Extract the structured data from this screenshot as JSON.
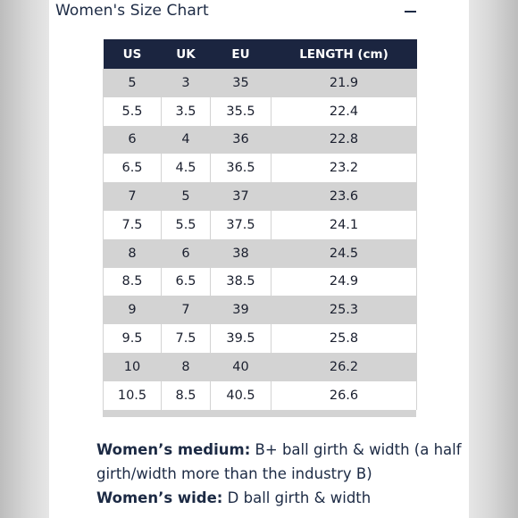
{
  "chart_title": "Women's Size Chart",
  "collapse_symbol": "–",
  "table": {
    "headers": [
      "US",
      "UK",
      "EU",
      "LENGTH (cm)"
    ],
    "rows": [
      [
        "5",
        "3",
        "35",
        "21.9"
      ],
      [
        "5.5",
        "3.5",
        "35.5",
        "22.4"
      ],
      [
        "6",
        "4",
        "36",
        "22.8"
      ],
      [
        "6.5",
        "4.5",
        "36.5",
        "23.2"
      ],
      [
        "7",
        "5",
        "37",
        "23.6"
      ],
      [
        "7.5",
        "5.5",
        "37.5",
        "24.1"
      ],
      [
        "8",
        "6",
        "38",
        "24.5"
      ],
      [
        "8.5",
        "6.5",
        "38.5",
        "24.9"
      ],
      [
        "9",
        "7",
        "39",
        "25.3"
      ],
      [
        "9.5",
        "7.5",
        "39.5",
        "25.8"
      ],
      [
        "10",
        "8",
        "40",
        "26.2"
      ],
      [
        "10.5",
        "8.5",
        "40.5",
        "26.6"
      ]
    ]
  },
  "notes": {
    "medium_label": "Women’s medium:",
    "medium_text": " B+ ball girth & width (a half girth/width more than the industry B)",
    "wide_label": "Women’s wide:",
    "wide_text": " D ball girth & width"
  },
  "colors": {
    "header_bg": "#1b2540",
    "row_shade": "#d3d3d3",
    "text": "#1c2a44"
  }
}
